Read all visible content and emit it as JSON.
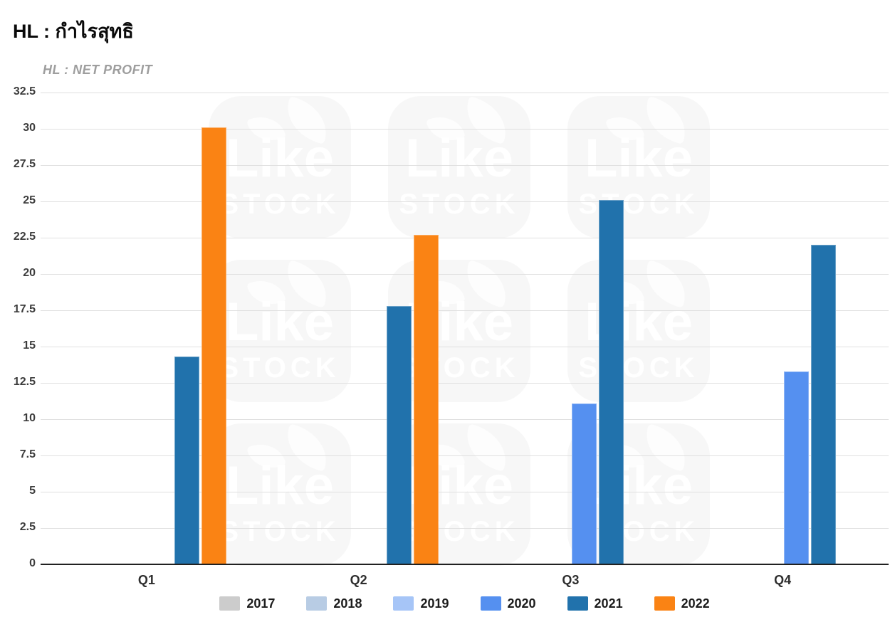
{
  "page": {
    "title": "HL : กำไรสุทธิ"
  },
  "watermark": {
    "line1": "Like",
    "line2": "STOCK",
    "icon": "leaf-icon"
  },
  "chart_data": {
    "type": "bar",
    "title": "HL : NET PROFIT",
    "categories": [
      "Q1",
      "Q2",
      "Q3",
      "Q4"
    ],
    "series": [
      {
        "name": "2017",
        "color": "#cccccc",
        "values": [
          null,
          null,
          null,
          null
        ]
      },
      {
        "name": "2018",
        "color": "#b8cce4",
        "values": [
          null,
          null,
          null,
          null
        ]
      },
      {
        "name": "2019",
        "color": "#a6c5f7",
        "values": [
          null,
          null,
          null,
          null
        ]
      },
      {
        "name": "2020",
        "color": "#5590f0",
        "values": [
          null,
          null,
          11.1,
          13.3
        ]
      },
      {
        "name": "2021",
        "color": "#2172ac",
        "values": [
          14.3,
          17.8,
          25.1,
          22.0
        ]
      },
      {
        "name": "2022",
        "color": "#fa8314",
        "values": [
          30.1,
          22.7,
          null,
          null
        ]
      }
    ],
    "ylim": [
      0,
      32.5
    ],
    "ytick_step": 2.5,
    "yticks": [
      "0",
      "2.5",
      "5",
      "7.5",
      "10",
      "12.5",
      "15",
      "17.5",
      "20",
      "22.5",
      "25",
      "27.5",
      "30",
      "32.5"
    ],
    "grid": true,
    "legend_position": "bottom"
  }
}
